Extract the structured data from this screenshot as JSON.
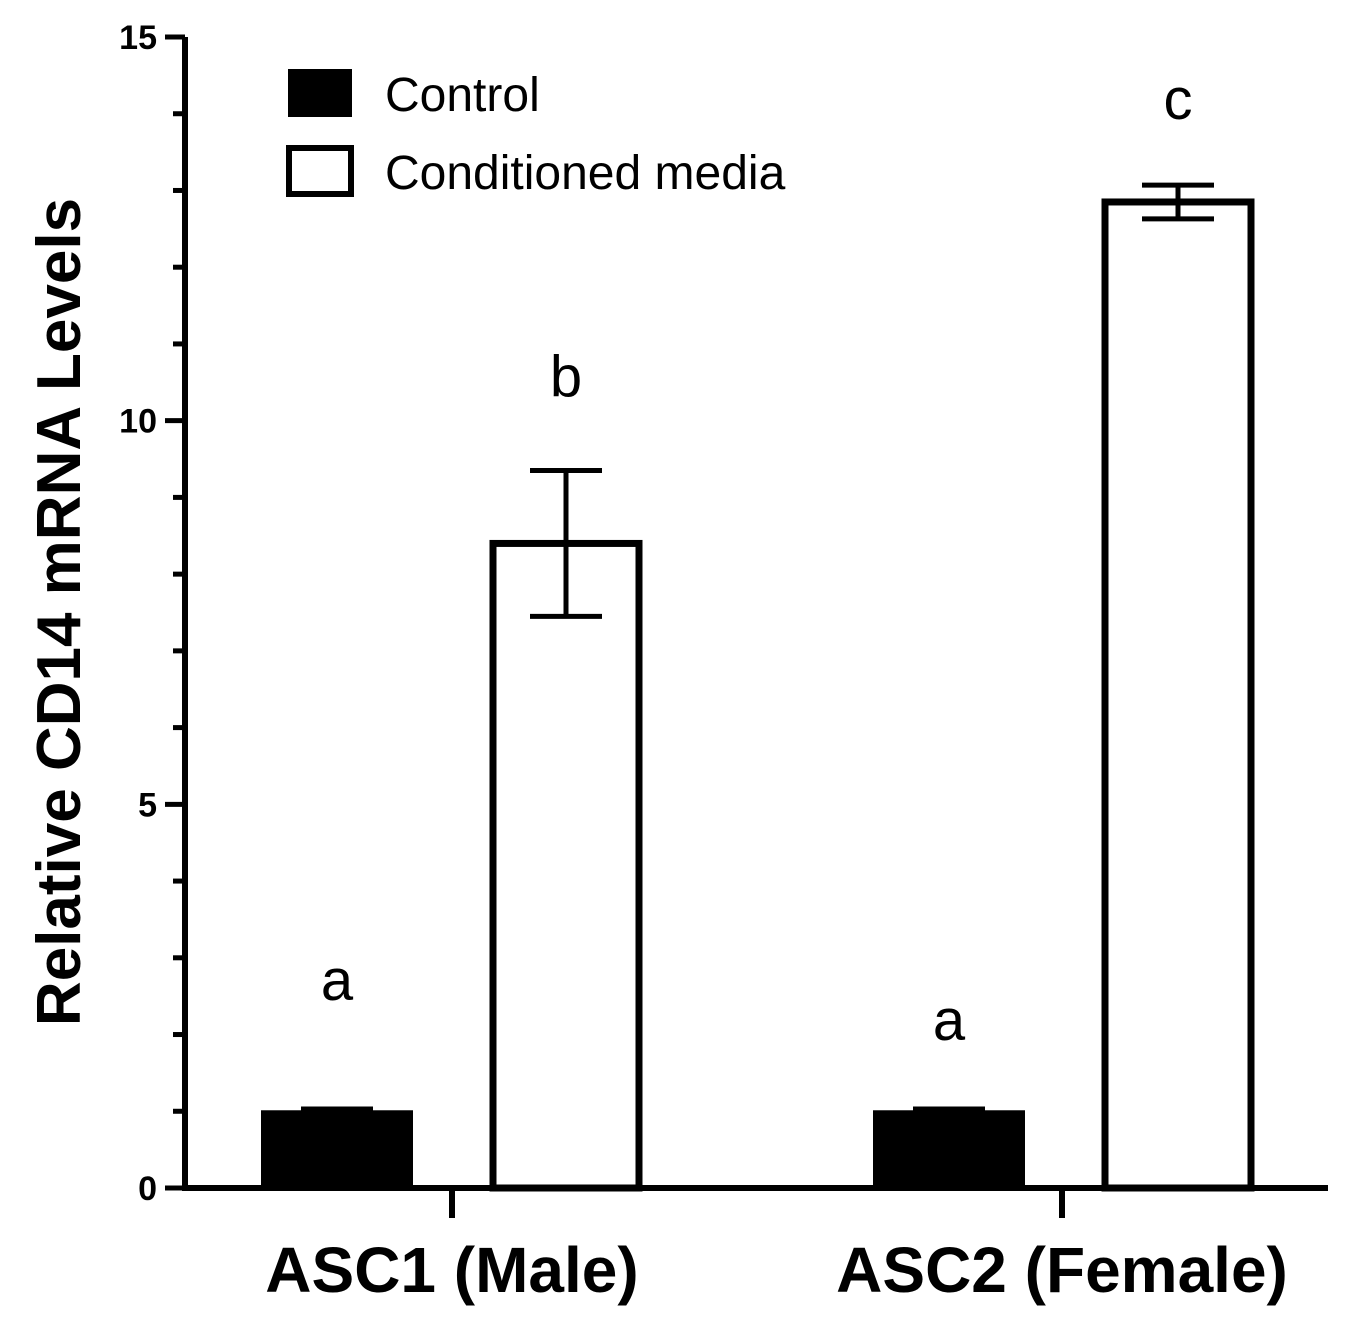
{
  "chart_data": {
    "type": "bar",
    "title": "",
    "xlabel": "",
    "ylabel": "Relative CD14 mRNA Levels",
    "ylim": [
      0,
      15
    ],
    "yticks": [
      0,
      5,
      10,
      15
    ],
    "y_minor_step": 1,
    "grid": false,
    "legend_position": "top-left",
    "categories": [
      "ASC1 (Male)",
      "ASC2 (Female)"
    ],
    "series": [
      {
        "name": "Control",
        "fill": "#000000",
        "values": [
          1.0,
          1.0
        ],
        "errors": [
          0.03,
          0.03
        ],
        "significance": [
          "a",
          "a"
        ]
      },
      {
        "name": "Conditioned media",
        "fill": "#ffffff",
        "values": [
          8.4,
          12.85
        ],
        "errors": [
          0.95,
          0.22
        ],
        "significance": [
          "b",
          "c"
        ]
      }
    ],
    "colors": {
      "axis": "#000000",
      "control": "#000000",
      "conditioned": "#ffffff"
    }
  }
}
